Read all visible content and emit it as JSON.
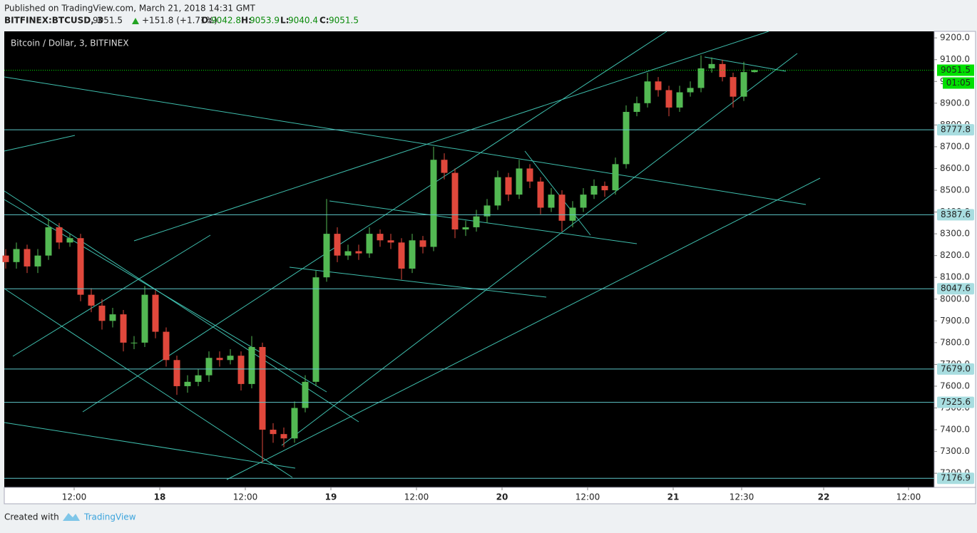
{
  "chart_data": {
    "type": "candlestick",
    "published": "Published on TradingView.com, March 21, 2018 14:31 GMT",
    "symbol": "BITFINEX:BTCUSD, 3",
    "change_label": "+151.8 (+1.71%)",
    "ohlc_labels": [
      "O:",
      "H:",
      "L:",
      "C:"
    ],
    "title": "Bitcoin / Dollar, 3, BITFINEX",
    "created_with": "Created with",
    "brand": "TradingView",
    "countdown": "01:05",
    "up_color": "#53b953",
    "down_color": "#e0483c",
    "level_color": "#5ec6c8",
    "last_color": "#00e000",
    "x": [
      2.4,
      3.9,
      5.4,
      6.9,
      8.4,
      9.9,
      11.4,
      12.9,
      14.4,
      15.9,
      17.4,
      18.9,
      20.4,
      21.9,
      23.4,
      24.9,
      26.4,
      27.9,
      29.4,
      30.9,
      32.4,
      33.9,
      35.4,
      36.9,
      38.4,
      39.9,
      41.4,
      42.9,
      44.4,
      45.9,
      47.4,
      48.9,
      50.4,
      51.9,
      53.4,
      54.9,
      56.4,
      57.9,
      59.4,
      60.9,
      62.4,
      63.9,
      65.4,
      66.9,
      68.4,
      69.9,
      71.4,
      72.9,
      74.4,
      75.9,
      77.4,
      78.9,
      80.4,
      81.9,
      83.4,
      84.9,
      86.4,
      87.9,
      89.4,
      90.9,
      92.4,
      93.9,
      95.4,
      96.9,
      98.4,
      99.9,
      101.4,
      102.9,
      104.4,
      105.9,
      107.4
    ],
    "candles": {
      "open": [
        8200,
        8170,
        8230,
        8150,
        8200,
        8330,
        8260,
        8280,
        8020,
        7970,
        7900,
        7930,
        7800,
        7800,
        8020,
        7850,
        7720,
        7600,
        7620,
        7650,
        7730,
        7720,
        7740,
        7610,
        7780,
        7400,
        7380,
        7360,
        7500,
        7620,
        8100,
        8300,
        8200,
        8220,
        8210,
        8300,
        8270,
        8260,
        8140,
        8270,
        8240,
        8640,
        8580,
        8320,
        8330,
        8380,
        8430,
        8560,
        8480,
        8600,
        8540,
        8420,
        8480,
        8360,
        8420,
        8480,
        8520,
        8500,
        8620,
        8860,
        8900,
        9000,
        8960,
        8880,
        8950,
        8970,
        9060,
        9080,
        9020,
        8930,
        9042.8
      ],
      "high": [
        8230,
        8260,
        8250,
        8230,
        8370,
        8350,
        8300,
        8300,
        8050,
        8000,
        7960,
        7950,
        7830,
        8060,
        8040,
        7870,
        7740,
        7650,
        7680,
        7760,
        7760,
        7770,
        7760,
        7830,
        7800,
        7430,
        7410,
        7530,
        7650,
        8130,
        8460,
        8330,
        8250,
        8250,
        8330,
        8320,
        8300,
        8280,
        8300,
        8290,
        8700,
        8670,
        8600,
        8360,
        8410,
        8460,
        8590,
        8580,
        8640,
        8620,
        8560,
        8510,
        8500,
        8450,
        8510,
        8550,
        8540,
        8650,
        8890,
        8930,
        9040,
        9020,
        8980,
        8980,
        9000,
        9120,
        9110,
        9100,
        9040,
        9090,
        9053.9
      ],
      "low": [
        8140,
        8140,
        8120,
        8120,
        8180,
        8230,
        8240,
        7990,
        7940,
        7860,
        7870,
        7760,
        7770,
        7780,
        7820,
        7690,
        7560,
        7570,
        7600,
        7620,
        7690,
        7700,
        7580,
        7590,
        7250,
        7340,
        7320,
        7340,
        7480,
        7600,
        8080,
        8170,
        8180,
        8180,
        8190,
        8240,
        8230,
        8090,
        8120,
        8210,
        8220,
        8550,
        8280,
        8290,
        8310,
        8350,
        8410,
        8450,
        8460,
        8510,
        8390,
        8400,
        8310,
        8330,
        8400,
        8460,
        8470,
        8480,
        8600,
        8840,
        8880,
        8930,
        8840,
        8860,
        8930,
        8950,
        9040,
        9000,
        8880,
        8910,
        9040.4
      ],
      "close": [
        8170,
        8230,
        8150,
        8200,
        8330,
        8260,
        8280,
        8020,
        7970,
        7900,
        7930,
        7800,
        7800,
        8020,
        7850,
        7720,
        7600,
        7620,
        7650,
        7730,
        7720,
        7740,
        7610,
        7780,
        7400,
        7380,
        7360,
        7500,
        7620,
        8100,
        8300,
        8200,
        8220,
        8210,
        8300,
        8270,
        8260,
        8140,
        8270,
        8240,
        8640,
        8580,
        8320,
        8330,
        8380,
        8430,
        8560,
        8480,
        8600,
        8540,
        8420,
        8480,
        8360,
        8420,
        8480,
        8520,
        8500,
        8620,
        8860,
        8900,
        9000,
        8960,
        8880,
        8950,
        8970,
        9060,
        9080,
        9020,
        8930,
        9042.8,
        9051.5
      ]
    },
    "levels": [
      8777.8,
      8387.6,
      8047.6,
      {
        "value": 7679,
        "label": "7679.0"
      },
      7525.6,
      7176.9
    ],
    "xlim": [
      2.2,
      132.6
    ],
    "xticks": [
      {
        "value": 12,
        "label": "12:00"
      },
      {
        "value": 24,
        "label": "18"
      },
      {
        "value": 36,
        "label": "12:00"
      },
      {
        "value": 48,
        "label": "19"
      },
      {
        "value": 60,
        "label": "12:00"
      },
      {
        "value": 72,
        "label": "20"
      },
      {
        "value": 84,
        "label": "12:00"
      },
      {
        "value": 96,
        "label": "21"
      },
      {
        "value": 105.6,
        "label": "12:30"
      },
      {
        "value": 117.1,
        "label": "22"
      },
      {
        "value": 129,
        "label": "12:00"
      }
    ],
    "ylim": [
      7135,
      9230
    ],
    "yticks": [
      {
        "value": 7200,
        "label": "7200.0"
      },
      {
        "value": 7300,
        "label": "7300.0"
      },
      {
        "value": 7400,
        "label": "7400.0"
      },
      {
        "value": 7500,
        "label": "7500.0"
      },
      {
        "value": 7600,
        "label": "7600.0"
      },
      {
        "value": 7700,
        "label": "7700.0"
      },
      {
        "value": 7800,
        "label": "7800.0"
      },
      {
        "value": 7900,
        "label": "7900.0"
      },
      {
        "value": 8000,
        "label": "8000.0"
      },
      {
        "value": 8100,
        "label": "8100.0"
      },
      {
        "value": 8200,
        "label": "8200.0"
      },
      {
        "value": 8300,
        "label": "8300.0"
      },
      {
        "value": 8400,
        "label": "8400.0"
      },
      {
        "value": 8500,
        "label": "8500.0"
      },
      {
        "value": 8600,
        "label": "8600.0"
      },
      {
        "value": 8700,
        "label": "8700.0"
      },
      {
        "value": 8800,
        "label": "8800.0"
      },
      {
        "value": 8900,
        "label": "8900.0"
      },
      {
        "value": 9000,
        "label": "9000.0"
      },
      {
        "value": 9100,
        "label": "9100.0"
      },
      {
        "value": 9200,
        "label": "9200.0"
      }
    ]
  }
}
